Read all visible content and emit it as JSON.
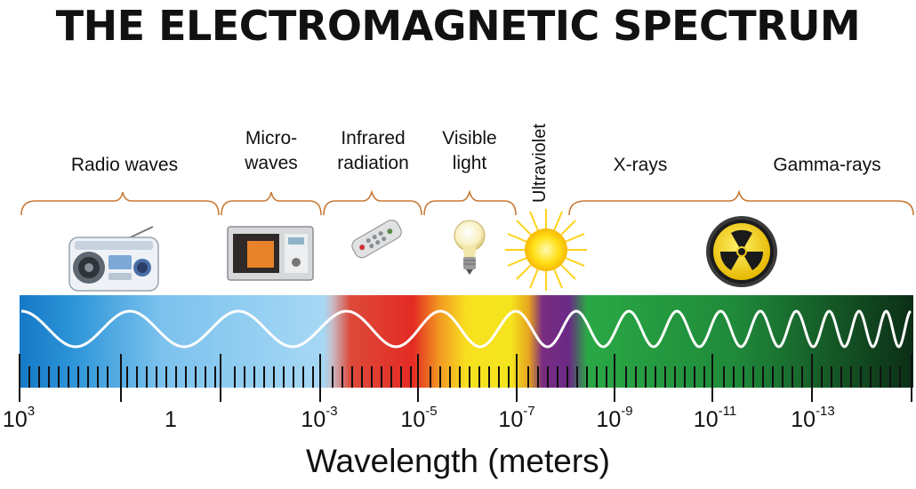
{
  "title": "THE ELECTROMAGNETIC SPECTRUM",
  "bands": {
    "radio": "Radio waves",
    "micro_1": "Micro-",
    "micro_2": "waves",
    "infrared_1": "Infrared",
    "infrared_2": "radiation",
    "visible_1": "Visible",
    "visible_2": "light",
    "ultraviolet": "Ultraviolet",
    "xrays": "X-rays",
    "gamma": "Gamma-rays"
  },
  "icons": [
    "radio-icon",
    "microwave-oven-icon",
    "remote-control-icon",
    "light-bulb-icon",
    "sun-icon",
    "radiation-symbol-icon"
  ],
  "axis": {
    "ticks": [
      {
        "base": "10",
        "exp": "3"
      },
      {
        "base": "1",
        "exp": ""
      },
      {
        "base": "10",
        "exp": "-3"
      },
      {
        "base": "10",
        "exp": "-5"
      },
      {
        "base": "10",
        "exp": "-7"
      },
      {
        "base": "10",
        "exp": "-9"
      },
      {
        "base": "10",
        "exp": "-11"
      },
      {
        "base": "10",
        "exp": "-13"
      }
    ],
    "title": "Wavelength (meters)"
  },
  "colors": {
    "radio": "#1e8fd6",
    "micro": "#9fd3f1",
    "infrared": "#e02a25",
    "visible": "#f4e51f",
    "ultraviolet": "#6b2a84",
    "xray": "#2aa845",
    "gamma": "#0e3a1c",
    "bracket": "#c87a37"
  }
}
